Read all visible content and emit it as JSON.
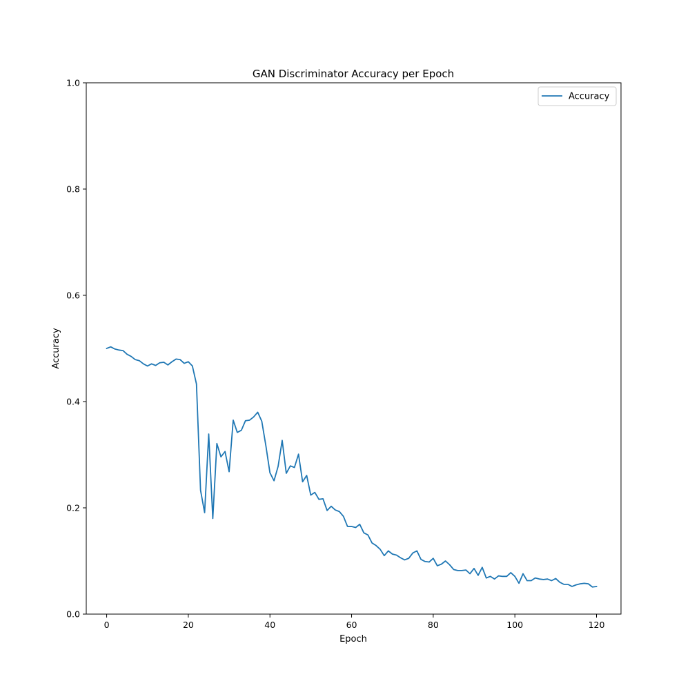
{
  "chart_data": {
    "type": "line",
    "title": "GAN Discriminator Accuracy per Epoch",
    "xlabel": "Epoch",
    "ylabel": "Accuracy",
    "xlim": [
      -5,
      126
    ],
    "ylim": [
      0,
      1.0
    ],
    "x_ticks": [
      0,
      20,
      40,
      60,
      80,
      100,
      120
    ],
    "y_ticks": [
      0.0,
      0.2,
      0.4,
      0.6,
      0.8,
      1.0
    ],
    "x_tick_labels": [
      "0",
      "20",
      "40",
      "60",
      "80",
      "100",
      "120"
    ],
    "y_tick_labels": [
      "0.0",
      "0.2",
      "0.4",
      "0.6",
      "0.8",
      "1.0"
    ],
    "grid": false,
    "legend_position": "top-right",
    "colors": {
      "series": "#1f77b4"
    },
    "series": [
      {
        "name": "Accuracy",
        "x": [
          0,
          1,
          2,
          3,
          4,
          5,
          6,
          7,
          8,
          9,
          10,
          11,
          12,
          13,
          14,
          15,
          16,
          17,
          18,
          19,
          20,
          21,
          22,
          23,
          24,
          25,
          26,
          27,
          28,
          29,
          30,
          31,
          32,
          33,
          34,
          35,
          36,
          37,
          38,
          39,
          40,
          41,
          42,
          43,
          44,
          45,
          46,
          47,
          48,
          49,
          50,
          51,
          52,
          53,
          54,
          55,
          56,
          57,
          58,
          59,
          60,
          61,
          62,
          63,
          64,
          65,
          66,
          67,
          68,
          69,
          70,
          71,
          72,
          73,
          74,
          75,
          76,
          77,
          78,
          79,
          80,
          81,
          82,
          83,
          84,
          85,
          86,
          87,
          88,
          89,
          90,
          91,
          92,
          93,
          94,
          95,
          96,
          97,
          98,
          99,
          100,
          101,
          102,
          103,
          104,
          105,
          106,
          107,
          108,
          109,
          110,
          111,
          112,
          113,
          114,
          115,
          116,
          117,
          118,
          119,
          120
        ],
        "values": [
          0.5,
          0.503,
          0.499,
          0.497,
          0.496,
          0.489,
          0.485,
          0.479,
          0.477,
          0.471,
          0.467,
          0.471,
          0.468,
          0.473,
          0.474,
          0.469,
          0.475,
          0.48,
          0.479,
          0.472,
          0.475,
          0.467,
          0.433,
          0.233,
          0.191,
          0.339,
          0.18,
          0.321,
          0.296,
          0.306,
          0.268,
          0.365,
          0.342,
          0.346,
          0.364,
          0.365,
          0.371,
          0.38,
          0.363,
          0.317,
          0.266,
          0.251,
          0.278,
          0.327,
          0.265,
          0.279,
          0.276,
          0.301,
          0.249,
          0.261,
          0.224,
          0.229,
          0.216,
          0.217,
          0.195,
          0.203,
          0.196,
          0.193,
          0.184,
          0.165,
          0.165,
          0.163,
          0.169,
          0.153,
          0.149,
          0.134,
          0.129,
          0.122,
          0.11,
          0.119,
          0.113,
          0.111,
          0.106,
          0.102,
          0.105,
          0.115,
          0.119,
          0.103,
          0.099,
          0.098,
          0.105,
          0.091,
          0.094,
          0.1,
          0.093,
          0.084,
          0.082,
          0.082,
          0.083,
          0.076,
          0.086,
          0.073,
          0.088,
          0.068,
          0.071,
          0.066,
          0.072,
          0.071,
          0.071,
          0.078,
          0.071,
          0.058,
          0.076,
          0.063,
          0.063,
          0.068,
          0.066,
          0.065,
          0.066,
          0.063,
          0.067,
          0.06,
          0.056,
          0.056,
          0.052,
          0.055,
          0.057,
          0.058,
          0.057,
          0.051,
          0.052
        ]
      }
    ]
  }
}
